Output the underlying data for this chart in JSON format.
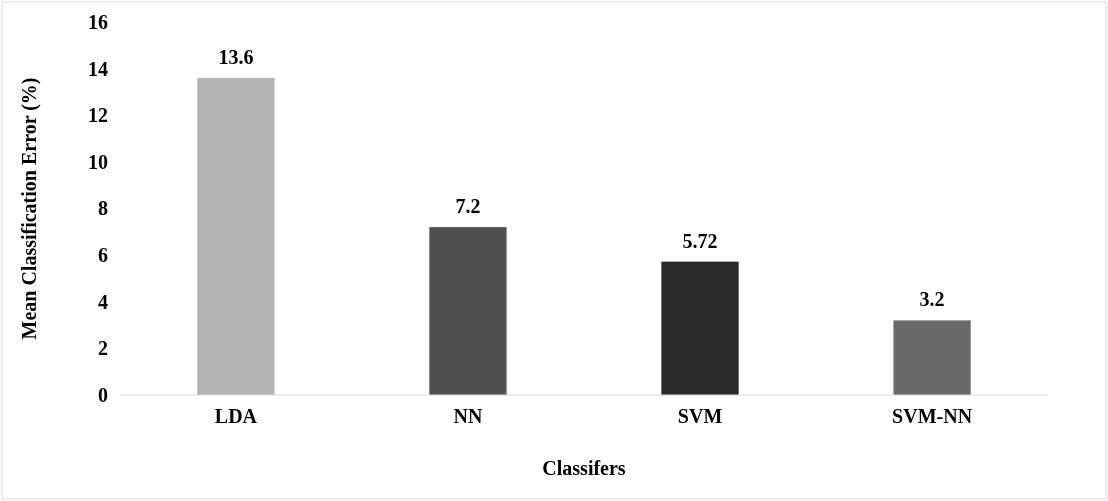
{
  "chart_data": {
    "type": "bar",
    "xlabel": "Classifers",
    "ylabel": "Mean Classification Error (%)",
    "categories": [
      "LDA",
      "NN",
      "SVM",
      "SVM-NN"
    ],
    "values": [
      13.6,
      7.2,
      5.72,
      3.2
    ],
    "colors": [
      "#b4b4b4",
      "#505050",
      "#2a2a2a",
      "#6a6a6a"
    ],
    "ylim": [
      0,
      16
    ],
    "yticks": [
      0,
      2,
      4,
      6,
      8,
      10,
      12,
      14,
      16
    ],
    "grid": false,
    "data_labels": true
  }
}
